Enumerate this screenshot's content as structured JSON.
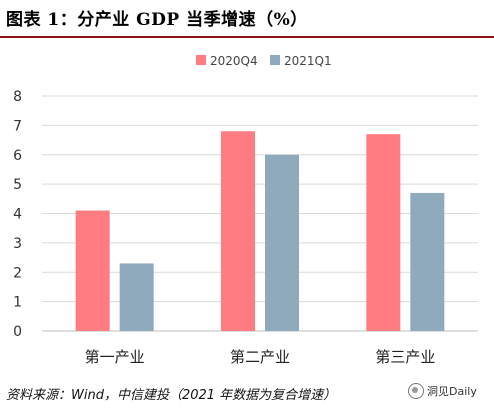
{
  "title": "图表 1：分产业 GDP 当季增速（%）",
  "source": "资料来源：Wind，中信建投（2021 年数据为复合增速）",
  "watermark": "洞见Daily",
  "chart_data": {
    "type": "bar",
    "categories": [
      "第一产业",
      "第二产业",
      "第三产业"
    ],
    "series": [
      {
        "name": "2020Q4",
        "values": [
          4.1,
          6.8,
          6.7
        ],
        "color": "#ff7c80"
      },
      {
        "name": "2021Q1",
        "values": [
          2.3,
          6.0,
          4.7
        ],
        "color": "#8faabd"
      }
    ],
    "ylim": [
      0,
      8
    ],
    "yticks": [
      "0",
      "1",
      "2",
      "3",
      "4",
      "5",
      "6",
      "7",
      "8"
    ],
    "grid": true,
    "legend_position": "top-center"
  }
}
